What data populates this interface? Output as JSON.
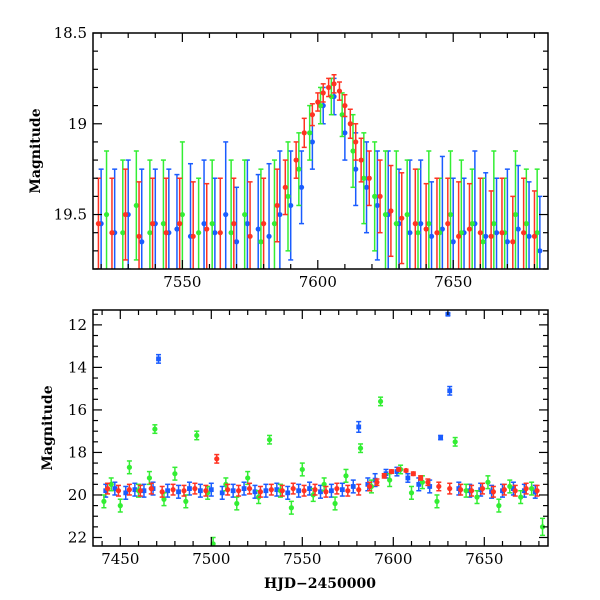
{
  "chart_data": [
    {
      "type": "scatter",
      "panel": "top",
      "ylabel": "Magnitude",
      "xlabel": "",
      "xlim": [
        7517,
        7685
      ],
      "ylim": [
        19.8,
        18.5
      ],
      "y_inverted": true,
      "xticks_major": [
        7550,
        7600,
        7650
      ],
      "yticks_major": [
        18.5,
        19,
        19.5
      ],
      "ytick_labels": [
        "18.5",
        "19",
        "19.5"
      ],
      "xtick_labels": [
        "7550",
        "7600",
        "7650"
      ],
      "series": [
        {
          "color": "#1a5cff",
          "marker": "filled-circle-with-errorbar",
          "x": [
            7520,
            7525,
            7530,
            7535,
            7540,
            7545,
            7548,
            7553,
            7558,
            7562,
            7566,
            7570,
            7574,
            7578,
            7582,
            7586,
            7590,
            7594,
            7598,
            7602,
            7606,
            7610,
            7614,
            7618,
            7622,
            7626,
            7630,
            7634,
            7638,
            7642,
            7646,
            7650,
            7654,
            7658,
            7662,
            7666,
            7670,
            7674,
            7678,
            7682
          ],
          "y": [
            19.55,
            19.6,
            19.5,
            19.65,
            19.55,
            19.6,
            19.58,
            19.62,
            19.55,
            19.6,
            19.5,
            19.65,
            19.55,
            19.58,
            19.62,
            19.5,
            19.45,
            19.35,
            19.1,
            18.9,
            18.85,
            19.05,
            19.25,
            19.35,
            19.45,
            19.5,
            19.55,
            19.6,
            19.55,
            19.62,
            19.58,
            19.65,
            19.6,
            19.55,
            19.62,
            19.6,
            19.65,
            19.58,
            19.62,
            19.7
          ],
          "err": [
            0.3,
            0.35,
            0.3,
            0.4,
            0.3,
            0.35,
            0.3,
            0.4,
            0.35,
            0.3,
            0.4,
            0.3,
            0.35,
            0.3,
            0.4,
            0.35,
            0.3,
            0.2,
            0.15,
            0.1,
            0.1,
            0.15,
            0.2,
            0.25,
            0.3,
            0.35,
            0.3,
            0.4,
            0.35,
            0.3,
            0.4,
            0.35,
            0.3,
            0.4,
            0.35,
            0.3,
            0.4,
            0.35,
            0.3,
            0.3
          ]
        },
        {
          "color": "#33ee33",
          "marker": "filled-circle-with-errorbar",
          "x": [
            7522,
            7528,
            7533,
            7538,
            7543,
            7550,
            7556,
            7561,
            7568,
            7573,
            7579,
            7584,
            7589,
            7593,
            7597,
            7601,
            7605,
            7609,
            7613,
            7617,
            7621,
            7625,
            7629,
            7633,
            7637,
            7641,
            7645,
            7649,
            7653,
            7657,
            7661,
            7665,
            7669,
            7673,
            7677,
            7681
          ],
          "y": [
            19.5,
            19.6,
            19.45,
            19.6,
            19.55,
            19.5,
            19.6,
            19.55,
            19.6,
            19.5,
            19.65,
            19.55,
            19.4,
            19.25,
            19.05,
            18.9,
            18.85,
            18.95,
            19.15,
            19.3,
            19.4,
            19.5,
            19.55,
            19.5,
            19.6,
            19.55,
            19.6,
            19.5,
            19.6,
            19.55,
            19.65,
            19.55,
            19.6,
            19.5,
            19.55,
            19.6
          ],
          "err": [
            0.35,
            0.4,
            0.3,
            0.4,
            0.35,
            0.4,
            0.3,
            0.35,
            0.4,
            0.3,
            0.4,
            0.35,
            0.3,
            0.2,
            0.15,
            0.1,
            0.1,
            0.12,
            0.2,
            0.25,
            0.3,
            0.35,
            0.4,
            0.3,
            0.35,
            0.4,
            0.3,
            0.35,
            0.4,
            0.3,
            0.35,
            0.4,
            0.3,
            0.35,
            0.3,
            0.35
          ]
        },
        {
          "color": "#ff3322",
          "marker": "filled-circle-with-errorbar",
          "x": [
            7519,
            7524,
            7529,
            7534,
            7539,
            7544,
            7549,
            7554,
            7559,
            7564,
            7569,
            7575,
            7580,
            7585,
            7588,
            7592,
            7595,
            7598,
            7600,
            7602,
            7604,
            7606,
            7608,
            7610,
            7612,
            7614,
            7616,
            7619,
            7623,
            7627,
            7631,
            7636,
            7640,
            7644,
            7648,
            7652,
            7656,
            7660,
            7664,
            7668,
            7672,
            7676,
            7680
          ],
          "y": [
            19.55,
            19.6,
            19.5,
            19.62,
            19.55,
            19.6,
            19.55,
            19.62,
            19.58,
            19.6,
            19.55,
            19.62,
            19.55,
            19.45,
            19.35,
            19.2,
            19.05,
            18.95,
            18.88,
            18.83,
            18.8,
            18.78,
            18.82,
            18.9,
            19.0,
            19.1,
            19.2,
            19.3,
            19.4,
            19.48,
            19.52,
            19.55,
            19.58,
            19.6,
            19.55,
            19.62,
            19.58,
            19.6,
            19.62,
            19.6,
            19.65,
            19.6,
            19.62
          ],
          "err": [
            0.25,
            0.3,
            0.25,
            0.3,
            0.25,
            0.3,
            0.25,
            0.3,
            0.25,
            0.3,
            0.25,
            0.3,
            0.25,
            0.2,
            0.15,
            0.1,
            0.08,
            0.06,
            0.05,
            0.05,
            0.05,
            0.05,
            0.05,
            0.06,
            0.08,
            0.1,
            0.12,
            0.15,
            0.2,
            0.25,
            0.25,
            0.3,
            0.25,
            0.3,
            0.25,
            0.3,
            0.25,
            0.3,
            0.25,
            0.3,
            0.25,
            0.3,
            0.25
          ]
        }
      ]
    },
    {
      "type": "scatter",
      "panel": "bottom",
      "ylabel": "Magnitude",
      "xlabel": "HJD−2450000",
      "xlim": [
        7435,
        7685
      ],
      "ylim": [
        22.4,
        11.3
      ],
      "y_inverted": true,
      "xticks_major": [
        7450,
        7500,
        7550,
        7600,
        7650
      ],
      "xtick_labels": [
        "7450",
        "7500",
        "7550",
        "7600",
        "7650"
      ],
      "yticks_major": [
        12,
        14,
        16,
        18,
        20,
        22
      ],
      "ytick_labels": [
        "12",
        "14",
        "16",
        "18",
        "20",
        "22"
      ],
      "series": [
        {
          "color": "#1a5cff",
          "marker": "filled-square-with-errorbar",
          "x": [
            7442,
            7447,
            7453,
            7458,
            7463,
            7468,
            7471,
            7476,
            7482,
            7488,
            7494,
            7500,
            7506,
            7512,
            7518,
            7524,
            7530,
            7536,
            7542,
            7548,
            7554,
            7560,
            7566,
            7572,
            7578,
            7581,
            7586,
            7590,
            7596,
            7602,
            7608,
            7614,
            7620,
            7626,
            7630,
            7631,
            7636,
            7642,
            7648,
            7654,
            7660,
            7666,
            7672,
            7678
          ],
          "y": [
            19.8,
            19.7,
            19.9,
            19.75,
            19.8,
            19.7,
            13.6,
            19.8,
            19.85,
            19.7,
            19.8,
            19.75,
            19.9,
            19.8,
            19.7,
            19.85,
            19.8,
            19.75,
            19.9,
            19.8,
            19.7,
            19.85,
            19.8,
            19.75,
            19.6,
            16.8,
            19.5,
            19.3,
            19.0,
            18.9,
            19.2,
            19.5,
            19.6,
            17.3,
            11.5,
            15.1,
            19.7,
            19.8,
            19.75,
            19.85,
            19.8,
            19.7,
            19.8,
            19.85
          ],
          "err": [
            0.3,
            0.3,
            0.3,
            0.3,
            0.3,
            0.3,
            0.2,
            0.3,
            0.3,
            0.3,
            0.3,
            0.3,
            0.3,
            0.3,
            0.3,
            0.3,
            0.3,
            0.3,
            0.3,
            0.3,
            0.3,
            0.3,
            0.3,
            0.3,
            0.3,
            0.25,
            0.3,
            0.3,
            0.2,
            0.2,
            0.2,
            0.3,
            0.3,
            0.1,
            0.05,
            0.2,
            0.3,
            0.3,
            0.3,
            0.3,
            0.3,
            0.3,
            0.3,
            0.3
          ]
        },
        {
          "color": "#33ee33",
          "marker": "filled-circle-with-errorbar",
          "x": [
            7441,
            7445,
            7450,
            7455,
            7460,
            7466,
            7469,
            7474,
            7480,
            7486,
            7492,
            7498,
            7501,
            7508,
            7514,
            7520,
            7526,
            7532,
            7538,
            7544,
            7550,
            7556,
            7562,
            7568,
            7574,
            7582,
            7588,
            7593,
            7598,
            7604,
            7610,
            7616,
            7624,
            7634,
            7640,
            7646,
            7652,
            7658,
            7664,
            7670,
            7676,
            7682
          ],
          "y": [
            20.3,
            19.5,
            20.5,
            18.7,
            19.8,
            19.2,
            16.9,
            20.2,
            19.0,
            20.3,
            17.2,
            19.9,
            22.3,
            19.5,
            20.4,
            19.2,
            20.1,
            17.4,
            19.8,
            20.6,
            18.8,
            20.0,
            19.5,
            20.4,
            19.1,
            17.8,
            19.6,
            15.6,
            19.3,
            18.8,
            19.9,
            19.4,
            20.3,
            17.5,
            19.8,
            20.1,
            19.4,
            20.5,
            19.6,
            20.1,
            19.7,
            21.5
          ],
          "err": [
            0.3,
            0.3,
            0.3,
            0.3,
            0.3,
            0.3,
            0.2,
            0.3,
            0.3,
            0.3,
            0.2,
            0.3,
            0.3,
            0.3,
            0.3,
            0.3,
            0.3,
            0.2,
            0.3,
            0.3,
            0.3,
            0.3,
            0.3,
            0.3,
            0.3,
            0.2,
            0.3,
            0.2,
            0.3,
            0.2,
            0.3,
            0.3,
            0.3,
            0.2,
            0.3,
            0.3,
            0.3,
            0.3,
            0.3,
            0.3,
            0.3,
            0.4
          ]
        },
        {
          "color": "#ff3322",
          "marker": "filled-circle-with-errorbar",
          "x": [
            7443,
            7449,
            7455,
            7461,
            7467,
            7473,
            7479,
            7485,
            7491,
            7497,
            7503,
            7509,
            7515,
            7521,
            7527,
            7533,
            7539,
            7545,
            7551,
            7557,
            7563,
            7569,
            7575,
            7581,
            7587,
            7591,
            7595,
            7599,
            7603,
            7607,
            7611,
            7615,
            7619,
            7625,
            7631,
            7637,
            7643,
            7649,
            7655,
            7661,
            7667,
            7673,
            7679
          ],
          "y": [
            19.7,
            19.8,
            19.75,
            19.8,
            19.7,
            19.85,
            19.75,
            19.8,
            19.7,
            19.8,
            18.3,
            19.75,
            19.8,
            19.7,
            19.85,
            19.75,
            19.8,
            19.7,
            19.8,
            19.75,
            19.85,
            19.7,
            19.8,
            19.75,
            19.6,
            19.4,
            19.1,
            18.9,
            18.8,
            18.85,
            19.0,
            19.2,
            19.4,
            19.6,
            19.7,
            19.75,
            19.8,
            19.7,
            19.85,
            19.75,
            19.8,
            19.7,
            19.8
          ],
          "err": [
            0.25,
            0.25,
            0.25,
            0.25,
            0.25,
            0.25,
            0.25,
            0.25,
            0.25,
            0.25,
            0.2,
            0.25,
            0.25,
            0.25,
            0.25,
            0.25,
            0.25,
            0.25,
            0.25,
            0.25,
            0.25,
            0.25,
            0.25,
            0.25,
            0.2,
            0.15,
            0.1,
            0.08,
            0.06,
            0.06,
            0.08,
            0.1,
            0.15,
            0.2,
            0.25,
            0.25,
            0.25,
            0.25,
            0.25,
            0.25,
            0.25,
            0.25,
            0.25
          ]
        }
      ]
    }
  ]
}
